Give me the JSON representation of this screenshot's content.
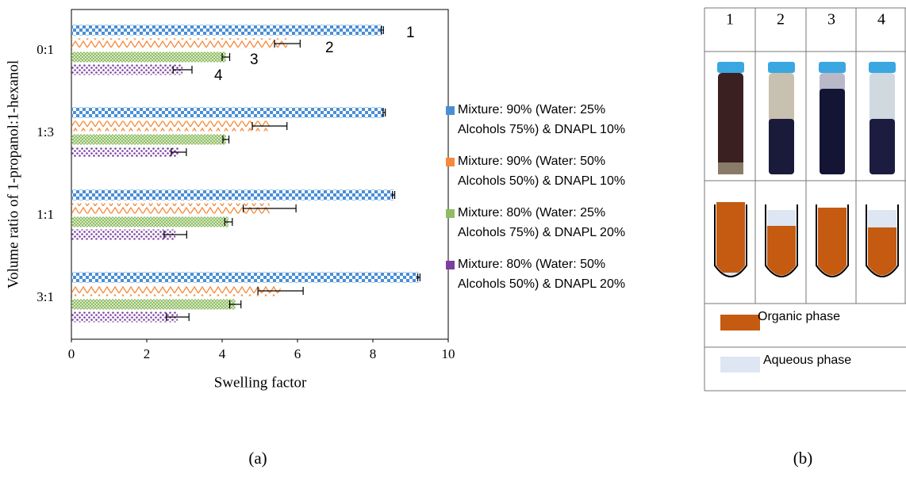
{
  "chart_data": {
    "type": "bar",
    "orientation": "horizontal",
    "xlabel": "Swelling factor",
    "ylabel": "Volume ratio of 1-propanol:1-hexanol",
    "categories": [
      "0:1",
      "1:3",
      "1:1",
      "3:1"
    ],
    "series": [
      {
        "name": "Mixture: 90% (Water: 25%\nAlcohols 75%) & DNAPL 10%",
        "color": "#4a8fd6",
        "values": [
          8.25,
          8.3,
          8.55,
          9.22
        ],
        "errors": [
          0.03,
          0.03,
          0.03,
          0.03
        ]
      },
      {
        "name": "Mixture: 90% (Water: 50%\nAlcohols 50%) & DNAPL 10%",
        "color": "#f58a3c",
        "values": [
          5.73,
          5.26,
          5.26,
          5.55
        ],
        "errors": [
          0.34,
          0.46,
          0.7,
          0.6
        ]
      },
      {
        "name": "Mixture: 80% (Water: 25%\nAlcohols 75%) & DNAPL 20%",
        "color": "#8fbd62",
        "values": [
          4.1,
          4.1,
          4.17,
          4.35
        ],
        "errors": [
          0.1,
          0.08,
          0.1,
          0.15
        ]
      },
      {
        "name": "Mixture: 80% (Water: 50%\nAlcohols 50%) & DNAPL 20%",
        "color": "#7b3fa0",
        "values": [
          2.95,
          2.85,
          2.76,
          2.82
        ],
        "errors": [
          0.25,
          0.2,
          0.3,
          0.3
        ]
      }
    ],
    "annotations": [
      "1",
      "2",
      "3",
      "4"
    ],
    "xlim": [
      0,
      10
    ],
    "xticks": [
      0,
      2,
      4,
      6,
      8,
      10
    ]
  },
  "panel_b": {
    "columns": [
      "1",
      "2",
      "3",
      "4"
    ],
    "legend": [
      "Organic phase",
      "Aqueous phase"
    ]
  },
  "captions": [
    "(a)",
    "(b)"
  ]
}
